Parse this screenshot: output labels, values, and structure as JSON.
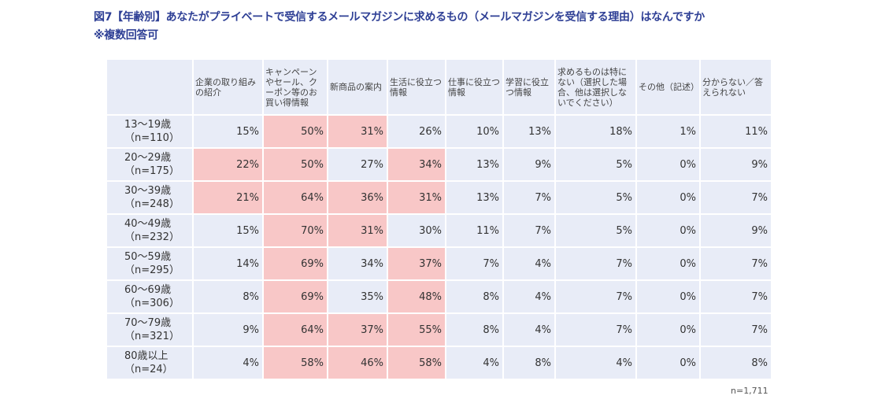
{
  "title": {
    "line1": "図7【年齢別】あなたがプライベートで受信するメールマガジンに求めるもの（メールマガジンを受信する理由）はなんですか",
    "line2": "※複数回答可"
  },
  "chart_data": {
    "type": "table",
    "columns": [
      "企業の取り組みの紹介",
      "キャンペーンやセール、クーポン等のお買い得情報",
      "新商品の案内",
      "生活に役立つ情報",
      "仕事に役立つ情報",
      "学習に役立つ情報",
      "求めるものは特にない（選択した場合、他は選択しないでください）",
      "その他（記述）",
      "分からない／答えられない"
    ],
    "rows": [
      {
        "label": [
          "13～19歳",
          "（n=110）"
        ],
        "values": [
          "15%",
          "50%",
          "31%",
          "26%",
          "10%",
          "13%",
          "18%",
          "1%",
          "11%"
        ],
        "highlight": [
          false,
          true,
          true,
          false,
          false,
          false,
          false,
          false,
          false
        ]
      },
      {
        "label": [
          "20～29歳",
          "（n=175）"
        ],
        "values": [
          "22%",
          "50%",
          "27%",
          "34%",
          "13%",
          "9%",
          "5%",
          "0%",
          "9%"
        ],
        "highlight": [
          true,
          true,
          false,
          true,
          false,
          false,
          false,
          false,
          false
        ]
      },
      {
        "label": [
          "30～39歳",
          "（n=248）"
        ],
        "values": [
          "21%",
          "64%",
          "36%",
          "31%",
          "13%",
          "7%",
          "5%",
          "0%",
          "7%"
        ],
        "highlight": [
          true,
          true,
          true,
          true,
          false,
          false,
          false,
          false,
          false
        ]
      },
      {
        "label": [
          "40～49歳",
          "（n=232）"
        ],
        "values": [
          "15%",
          "70%",
          "31%",
          "30%",
          "11%",
          "7%",
          "5%",
          "0%",
          "9%"
        ],
        "highlight": [
          false,
          true,
          true,
          false,
          false,
          false,
          false,
          false,
          false
        ]
      },
      {
        "label": [
          "50～59歳",
          "（n=295）"
        ],
        "values": [
          "14%",
          "69%",
          "34%",
          "37%",
          "7%",
          "4%",
          "7%",
          "0%",
          "7%"
        ],
        "highlight": [
          false,
          true,
          false,
          true,
          false,
          false,
          false,
          false,
          false
        ]
      },
      {
        "label": [
          "60～69歳",
          "（n=306）"
        ],
        "values": [
          "8%",
          "69%",
          "35%",
          "48%",
          "8%",
          "4%",
          "7%",
          "0%",
          "7%"
        ],
        "highlight": [
          false,
          true,
          false,
          true,
          false,
          false,
          false,
          false,
          false
        ]
      },
      {
        "label": [
          "70～79歳",
          "（n=321）"
        ],
        "values": [
          "9%",
          "64%",
          "37%",
          "55%",
          "8%",
          "4%",
          "7%",
          "0%",
          "7%"
        ],
        "highlight": [
          false,
          true,
          true,
          true,
          false,
          false,
          false,
          false,
          false
        ]
      },
      {
        "label": [
          "80歳以上",
          "（n=24）"
        ],
        "values": [
          "4%",
          "58%",
          "46%",
          "58%",
          "4%",
          "8%",
          "4%",
          "0%",
          "8%"
        ],
        "highlight": [
          false,
          true,
          true,
          true,
          false,
          false,
          false,
          false,
          false
        ]
      }
    ],
    "colors": {
      "cell": "#e8ecf7",
      "highlight": "#f8c7c7",
      "title": "#2e3f95"
    },
    "note": "n=1,711"
  }
}
